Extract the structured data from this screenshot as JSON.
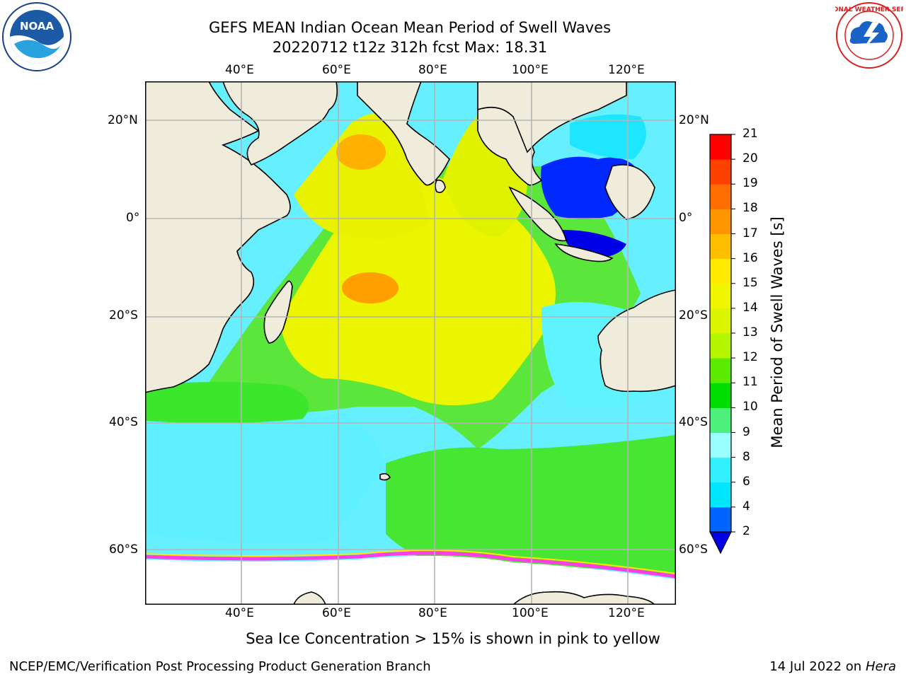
{
  "header": {
    "title": "GEFS MEAN Indian Ocean Mean Period of Swell Waves",
    "subtitle": "20220712 t12z 312h fcst   Max: 18.31"
  },
  "logos": {
    "left": {
      "text": "NOAA",
      "ring_text": "NATIONAL OCEANIC AND ATMOSPHERIC ADMINISTRATION · U.S. DEPARTMENT OF COMMERCE"
    },
    "right": {
      "ring_text": "NATIONAL WEATHER SERVICE"
    }
  },
  "map": {
    "lon_labels": [
      "40°E",
      "60°E",
      "80°E",
      "100°E",
      "120°E"
    ],
    "lat_labels": [
      "20°N",
      "0°",
      "20°S",
      "40°S",
      "60°S"
    ],
    "land_color": "#efecdc",
    "grid_color": "#b4b4b4"
  },
  "colorbar": {
    "label": "Mean Period of Swell Waves [s]",
    "ticks": [
      "2",
      "4",
      "6",
      "8",
      "9",
      "10",
      "11",
      "12",
      "13",
      "14",
      "15",
      "16",
      "17",
      "18",
      "19",
      "20",
      "21"
    ],
    "colors": [
      "#0064ff",
      "#00e6ff",
      "#33f0ff",
      "#99ffff",
      "#4cf07a",
      "#00dc00",
      "#5aeb00",
      "#b4f500",
      "#dcf500",
      "#f0f500",
      "#ffeb00",
      "#ffbe00",
      "#ff9600",
      "#ff6e00",
      "#ff4100",
      "#ff0000"
    ],
    "under_color": "#0000e6"
  },
  "footer": {
    "note": "Sea Ice Concentration > 15% is shown in pink to yellow",
    "left": "NCEP/EMC/Verification Post Processing Product Generation Branch",
    "right_prefix": "14 Jul 2022 on ",
    "right_machine": "Hera"
  }
}
